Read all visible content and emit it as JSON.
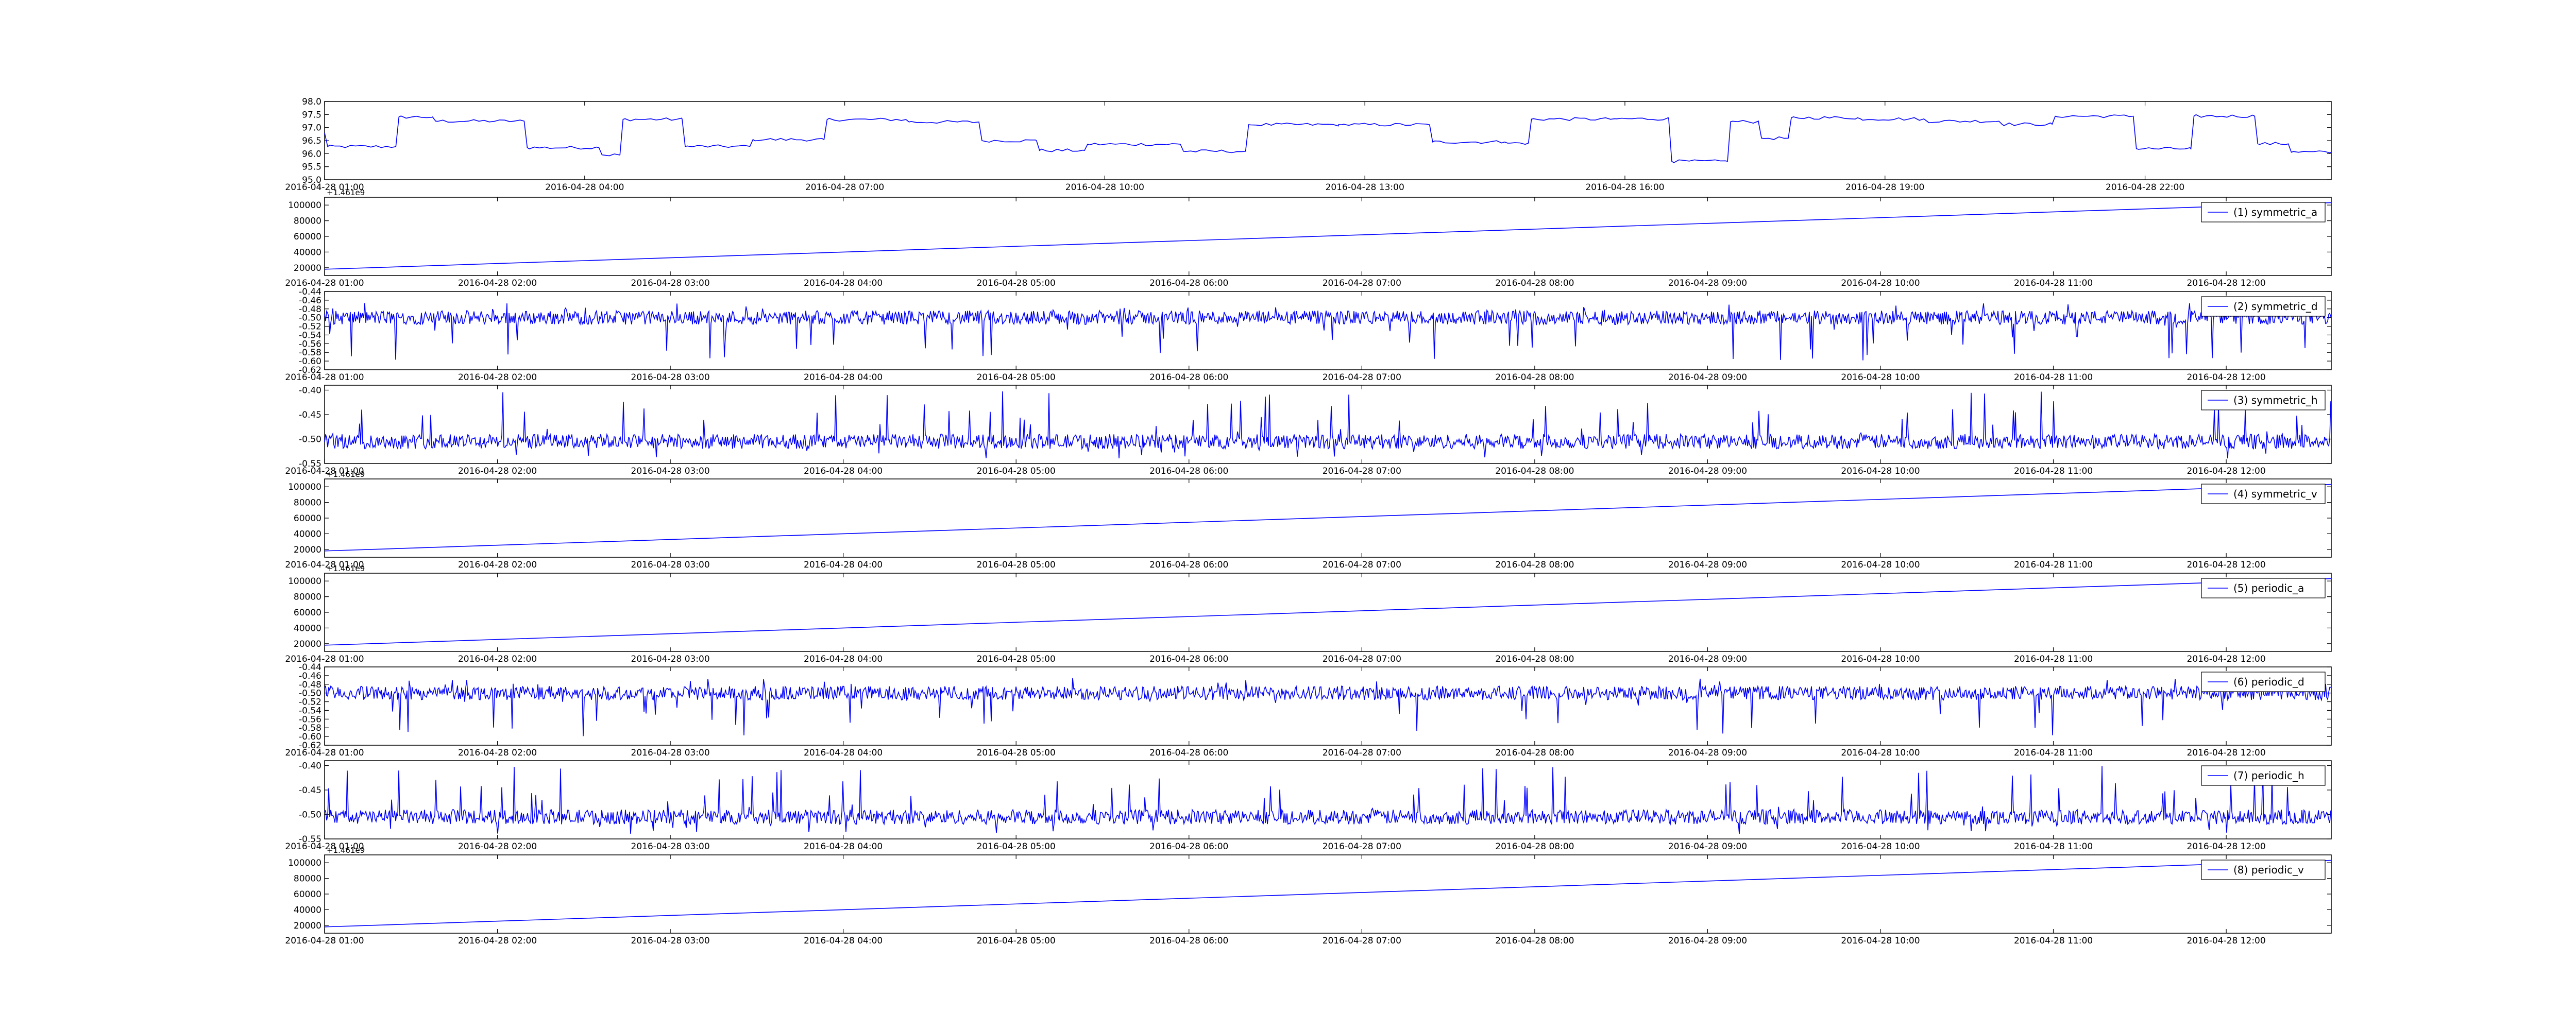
{
  "chart_data": [
    {
      "type": "line",
      "title": "",
      "xlabel": "",
      "ylabel": "",
      "legend": null,
      "ylim": [
        95.0,
        98.0
      ],
      "yticks": [
        "95.0",
        "95.5",
        "96.0",
        "96.5",
        "97.0",
        "97.5",
        "98.0"
      ],
      "xticks": [
        "2016-04-28 01:00",
        "2016-04-28 04:00",
        "2016-04-28 07:00",
        "2016-04-28 10:00",
        "2016-04-28 13:00",
        "2016-04-28 16:00",
        "2016-04-28 19:00",
        "2016-04-28 22:00"
      ],
      "signal": "step",
      "series": [
        {
          "values_summary": "step-like signal oscillating between ~95.6 and ~97.4"
        }
      ]
    },
    {
      "type": "line",
      "title": "",
      "xlabel": "",
      "ylabel": "",
      "legend": "(1) symmetric_a",
      "legend_position": "top-right",
      "offset_text": "+1.461e9",
      "ylim": [
        10000,
        110000
      ],
      "yticks": [
        "20000",
        "40000",
        "60000",
        "80000",
        "100000"
      ],
      "xticks": [
        "2016-04-28 01:00",
        "2016-04-28 02:00",
        "2016-04-28 03:00",
        "2016-04-28 04:00",
        "2016-04-28 05:00",
        "2016-04-28 06:00",
        "2016-04-28 07:00",
        "2016-04-28 08:00",
        "2016-04-28 09:00",
        "2016-04-28 10:00",
        "2016-04-28 11:00",
        "2016-04-28 12:00"
      ],
      "signal": "ramp",
      "x": [
        "2016-04-28 01:00",
        "2016-04-28 12:40"
      ],
      "series": [
        {
          "name": "(1) symmetric_a",
          "values": [
            18000,
            103000
          ]
        }
      ]
    },
    {
      "type": "line",
      "title": "",
      "xlabel": "",
      "ylabel": "",
      "legend": "(2) symmetric_d",
      "legend_position": "top-right",
      "ylim": [
        -0.62,
        -0.44
      ],
      "yticks": [
        "-0.62",
        "-0.60",
        "-0.58",
        "-0.56",
        "-0.54",
        "-0.52",
        "-0.50",
        "-0.48",
        "-0.46",
        "-0.44"
      ],
      "xticks": [
        "2016-04-28 01:00",
        "2016-04-28 02:00",
        "2016-04-28 03:00",
        "2016-04-28 04:00",
        "2016-04-28 05:00",
        "2016-04-28 06:00",
        "2016-04-28 07:00",
        "2016-04-28 08:00",
        "2016-04-28 09:00",
        "2016-04-28 10:00",
        "2016-04-28 11:00",
        "2016-04-28 12:00"
      ],
      "signal": "noise-d",
      "series": [
        {
          "name": "(2) symmetric_d",
          "values_summary": "dense noise centered near -0.50, spikes down to about -0.61"
        }
      ]
    },
    {
      "type": "line",
      "title": "",
      "xlabel": "",
      "ylabel": "",
      "legend": "(3) symmetric_h",
      "legend_position": "top-right",
      "ylim": [
        -0.55,
        -0.39
      ],
      "yticks": [
        "-0.55",
        "-0.50",
        "-0.45",
        "-0.40"
      ],
      "xticks": [
        "2016-04-28 01:00",
        "2016-04-28 02:00",
        "2016-04-28 03:00",
        "2016-04-28 04:00",
        "2016-04-28 05:00",
        "2016-04-28 06:00",
        "2016-04-28 07:00",
        "2016-04-28 08:00",
        "2016-04-28 09:00",
        "2016-04-28 10:00",
        "2016-04-28 11:00",
        "2016-04-28 12:00"
      ],
      "signal": "noise-h",
      "series": [
        {
          "name": "(3) symmetric_h",
          "values_summary": "dense noise centered near -0.50, spikes up to about -0.40"
        }
      ]
    },
    {
      "type": "line",
      "title": "",
      "xlabel": "",
      "ylabel": "",
      "legend": "(4) symmetric_v",
      "legend_position": "top-right",
      "offset_text": "+1.461e9",
      "ylim": [
        10000,
        110000
      ],
      "yticks": [
        "20000",
        "40000",
        "60000",
        "80000",
        "100000"
      ],
      "xticks": [
        "2016-04-28 01:00",
        "2016-04-28 02:00",
        "2016-04-28 03:00",
        "2016-04-28 04:00",
        "2016-04-28 05:00",
        "2016-04-28 06:00",
        "2016-04-28 07:00",
        "2016-04-28 08:00",
        "2016-04-28 09:00",
        "2016-04-28 10:00",
        "2016-04-28 11:00",
        "2016-04-28 12:00"
      ],
      "signal": "ramp",
      "x": [
        "2016-04-28 01:00",
        "2016-04-28 12:40"
      ],
      "series": [
        {
          "name": "(4) symmetric_v",
          "values": [
            18000,
            103000
          ]
        }
      ]
    },
    {
      "type": "line",
      "title": "",
      "xlabel": "",
      "ylabel": "",
      "legend": "(5) periodic_a",
      "legend_position": "top-right",
      "offset_text": "+1.461e9",
      "ylim": [
        10000,
        110000
      ],
      "yticks": [
        "20000",
        "40000",
        "60000",
        "80000",
        "100000"
      ],
      "xticks": [
        "2016-04-28 01:00",
        "2016-04-28 02:00",
        "2016-04-28 03:00",
        "2016-04-28 04:00",
        "2016-04-28 05:00",
        "2016-04-28 06:00",
        "2016-04-28 07:00",
        "2016-04-28 08:00",
        "2016-04-28 09:00",
        "2016-04-28 10:00",
        "2016-04-28 11:00",
        "2016-04-28 12:00"
      ],
      "signal": "ramp",
      "x": [
        "2016-04-28 01:00",
        "2016-04-28 12:40"
      ],
      "series": [
        {
          "name": "(5) periodic_a",
          "values": [
            18000,
            103000
          ]
        }
      ]
    },
    {
      "type": "line",
      "title": "",
      "xlabel": "",
      "ylabel": "",
      "legend": "(6) periodic_d",
      "legend_position": "top-right",
      "ylim": [
        -0.62,
        -0.44
      ],
      "yticks": [
        "-0.62",
        "-0.60",
        "-0.58",
        "-0.56",
        "-0.54",
        "-0.52",
        "-0.50",
        "-0.48",
        "-0.46",
        "-0.44"
      ],
      "xticks": [
        "2016-04-28 01:00",
        "2016-04-28 02:00",
        "2016-04-28 03:00",
        "2016-04-28 04:00",
        "2016-04-28 05:00",
        "2016-04-28 06:00",
        "2016-04-28 07:00",
        "2016-04-28 08:00",
        "2016-04-28 09:00",
        "2016-04-28 10:00",
        "2016-04-28 11:00",
        "2016-04-28 12:00"
      ],
      "signal": "noise-d",
      "series": [
        {
          "name": "(6) periodic_d",
          "values_summary": "dense noise centered near -0.50, spikes down to about -0.61"
        }
      ]
    },
    {
      "type": "line",
      "title": "",
      "xlabel": "",
      "ylabel": "",
      "legend": "(7) periodic_h",
      "legend_position": "top-right",
      "ylim": [
        -0.55,
        -0.39
      ],
      "yticks": [
        "-0.55",
        "-0.50",
        "-0.45",
        "-0.40"
      ],
      "xticks": [
        "2016-04-28 01:00",
        "2016-04-28 02:00",
        "2016-04-28 03:00",
        "2016-04-28 04:00",
        "2016-04-28 05:00",
        "2016-04-28 06:00",
        "2016-04-28 07:00",
        "2016-04-28 08:00",
        "2016-04-28 09:00",
        "2016-04-28 10:00",
        "2016-04-28 11:00",
        "2016-04-28 12:00"
      ],
      "signal": "noise-h",
      "series": [
        {
          "name": "(7) periodic_h",
          "values_summary": "dense noise centered near -0.50, spikes up to about -0.40"
        }
      ]
    },
    {
      "type": "line",
      "title": "",
      "xlabel": "",
      "ylabel": "",
      "legend": "(8) periodic_v",
      "legend_position": "top-right",
      "offset_text": "+1.461e9",
      "ylim": [
        10000,
        110000
      ],
      "yticks": [
        "20000",
        "40000",
        "60000",
        "80000",
        "100000"
      ],
      "xticks": [
        "2016-04-28 01:00",
        "2016-04-28 02:00",
        "2016-04-28 03:00",
        "2016-04-28 04:00",
        "2016-04-28 05:00",
        "2016-04-28 06:00",
        "2016-04-28 07:00",
        "2016-04-28 08:00",
        "2016-04-28 09:00",
        "2016-04-28 10:00",
        "2016-04-28 11:00",
        "2016-04-28 12:00"
      ],
      "signal": "ramp",
      "x": [
        "2016-04-28 01:00",
        "2016-04-28 12:40"
      ],
      "series": [
        {
          "name": "(8) periodic_v",
          "values": [
            18000,
            103000
          ]
        }
      ]
    }
  ],
  "colors": {
    "line": "#0000ff",
    "axes": "#000000",
    "background": "#ffffff"
  }
}
